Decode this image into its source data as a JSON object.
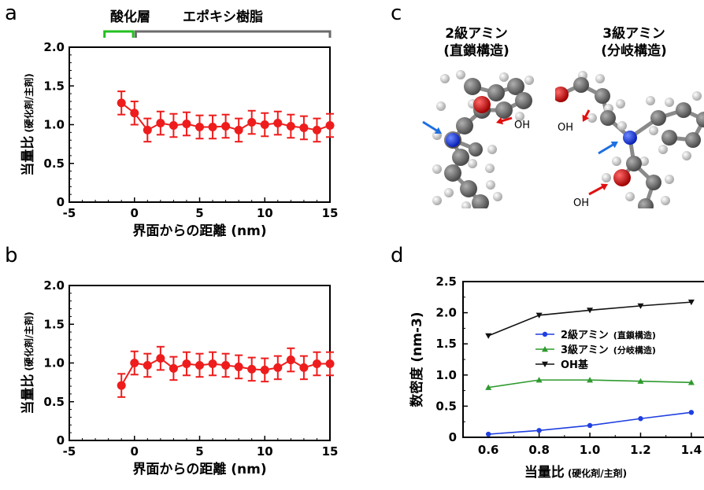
{
  "panels": {
    "a": "a",
    "b": "b",
    "c": "c",
    "d": "d"
  },
  "region_labels": {
    "oxide": "酸化層",
    "epoxy": "エポキシ樹脂"
  },
  "molecules": {
    "secondary": {
      "line1": "2級アミン",
      "line2": "(直鎖構造)"
    },
    "tertiary": {
      "line1": "3級アミン",
      "line2": "(分岐構造)"
    },
    "oh_label": "OH"
  },
  "colors": {
    "profile": "#ee1c1c",
    "oxide_bracket": "#22c020",
    "epoxy_bracket": "#6b6b6b",
    "blue_series": "#1f3fe0",
    "green_series": "#2e9a2e",
    "black_series": "#111111",
    "arrow_blue": "#1f6fe0",
    "arrow_red": "#e01010"
  },
  "chart_data": [
    {
      "id": "a",
      "type": "scatter",
      "error_bars": true,
      "xlabel": "界面からの距離 (nm)",
      "ylabel_main": "当量比",
      "ylabel_sub": "(硬化剤/主剤)",
      "xlim": [
        -5,
        15
      ],
      "ylim": [
        0,
        2.0
      ],
      "xticks": [
        "-5",
        "0",
        "5",
        "10",
        "15"
      ],
      "yticks": [
        "0",
        "0.5",
        "1.0",
        "1.5",
        "2.0"
      ],
      "x": [
        -1,
        0,
        1,
        2,
        3,
        4,
        5,
        6,
        7,
        8,
        9,
        10,
        11,
        12,
        13,
        14,
        15
      ],
      "y": [
        1.28,
        1.15,
        0.93,
        1.02,
        0.99,
        1.01,
        0.97,
        0.97,
        0.98,
        0.93,
        1.03,
        1.0,
        1.02,
        0.98,
        0.96,
        0.93,
        0.99
      ],
      "err": [
        0.15,
        0.15,
        0.15,
        0.15,
        0.15,
        0.15,
        0.15,
        0.15,
        0.15,
        0.15,
        0.15,
        0.15,
        0.15,
        0.15,
        0.15,
        0.15,
        0.15
      ]
    },
    {
      "id": "b",
      "type": "scatter",
      "error_bars": true,
      "xlabel": "界面からの距離 (nm)",
      "ylabel_main": "当量比",
      "ylabel_sub": "(硬化剤/主剤)",
      "xlim": [
        -5,
        15
      ],
      "ylim": [
        0,
        2.0
      ],
      "xticks": [
        "-5",
        "0",
        "5",
        "10",
        "15"
      ],
      "yticks": [
        "0",
        "0.5",
        "1.0",
        "1.5",
        "2.0"
      ],
      "x": [
        -1,
        0,
        1,
        2,
        3,
        4,
        5,
        6,
        7,
        8,
        9,
        10,
        11,
        12,
        13,
        14,
        15
      ],
      "y": [
        0.71,
        1.0,
        0.97,
        1.06,
        0.93,
        0.99,
        0.97,
        0.99,
        0.97,
        0.95,
        0.92,
        0.91,
        0.94,
        1.04,
        0.94,
        0.99,
        0.99
      ],
      "err": [
        0.15,
        0.15,
        0.15,
        0.15,
        0.15,
        0.15,
        0.15,
        0.15,
        0.15,
        0.15,
        0.15,
        0.15,
        0.15,
        0.15,
        0.15,
        0.15,
        0.15
      ]
    },
    {
      "id": "d",
      "type": "line",
      "xlabel_main": "当量比",
      "xlabel_sub": "(硬化剤/主剤)",
      "ylabel": "数密度 (nm-3)",
      "xlim": [
        0.5,
        1.45
      ],
      "ylim": [
        0,
        2.5
      ],
      "xticks": [
        "0.6",
        "0.8",
        "1.0",
        "1.2",
        "1.4"
      ],
      "yticks": [
        "0",
        "0.5",
        "1.0",
        "1.5",
        "2.0",
        "2.5"
      ],
      "x": [
        0.6,
        0.8,
        1.0,
        1.2,
        1.4
      ],
      "series": [
        {
          "name": "2級アミン",
          "name_sub": "(直鎖構造)",
          "values": [
            0.05,
            0.11,
            0.19,
            0.3,
            0.4
          ]
        },
        {
          "name": "3級アミン",
          "name_sub": "(分岐構造)",
          "values": [
            0.8,
            0.92,
            0.92,
            0.9,
            0.88
          ]
        },
        {
          "name": "OH基",
          "name_sub": "",
          "values": [
            1.63,
            1.96,
            2.04,
            2.11,
            2.17
          ]
        }
      ]
    }
  ]
}
